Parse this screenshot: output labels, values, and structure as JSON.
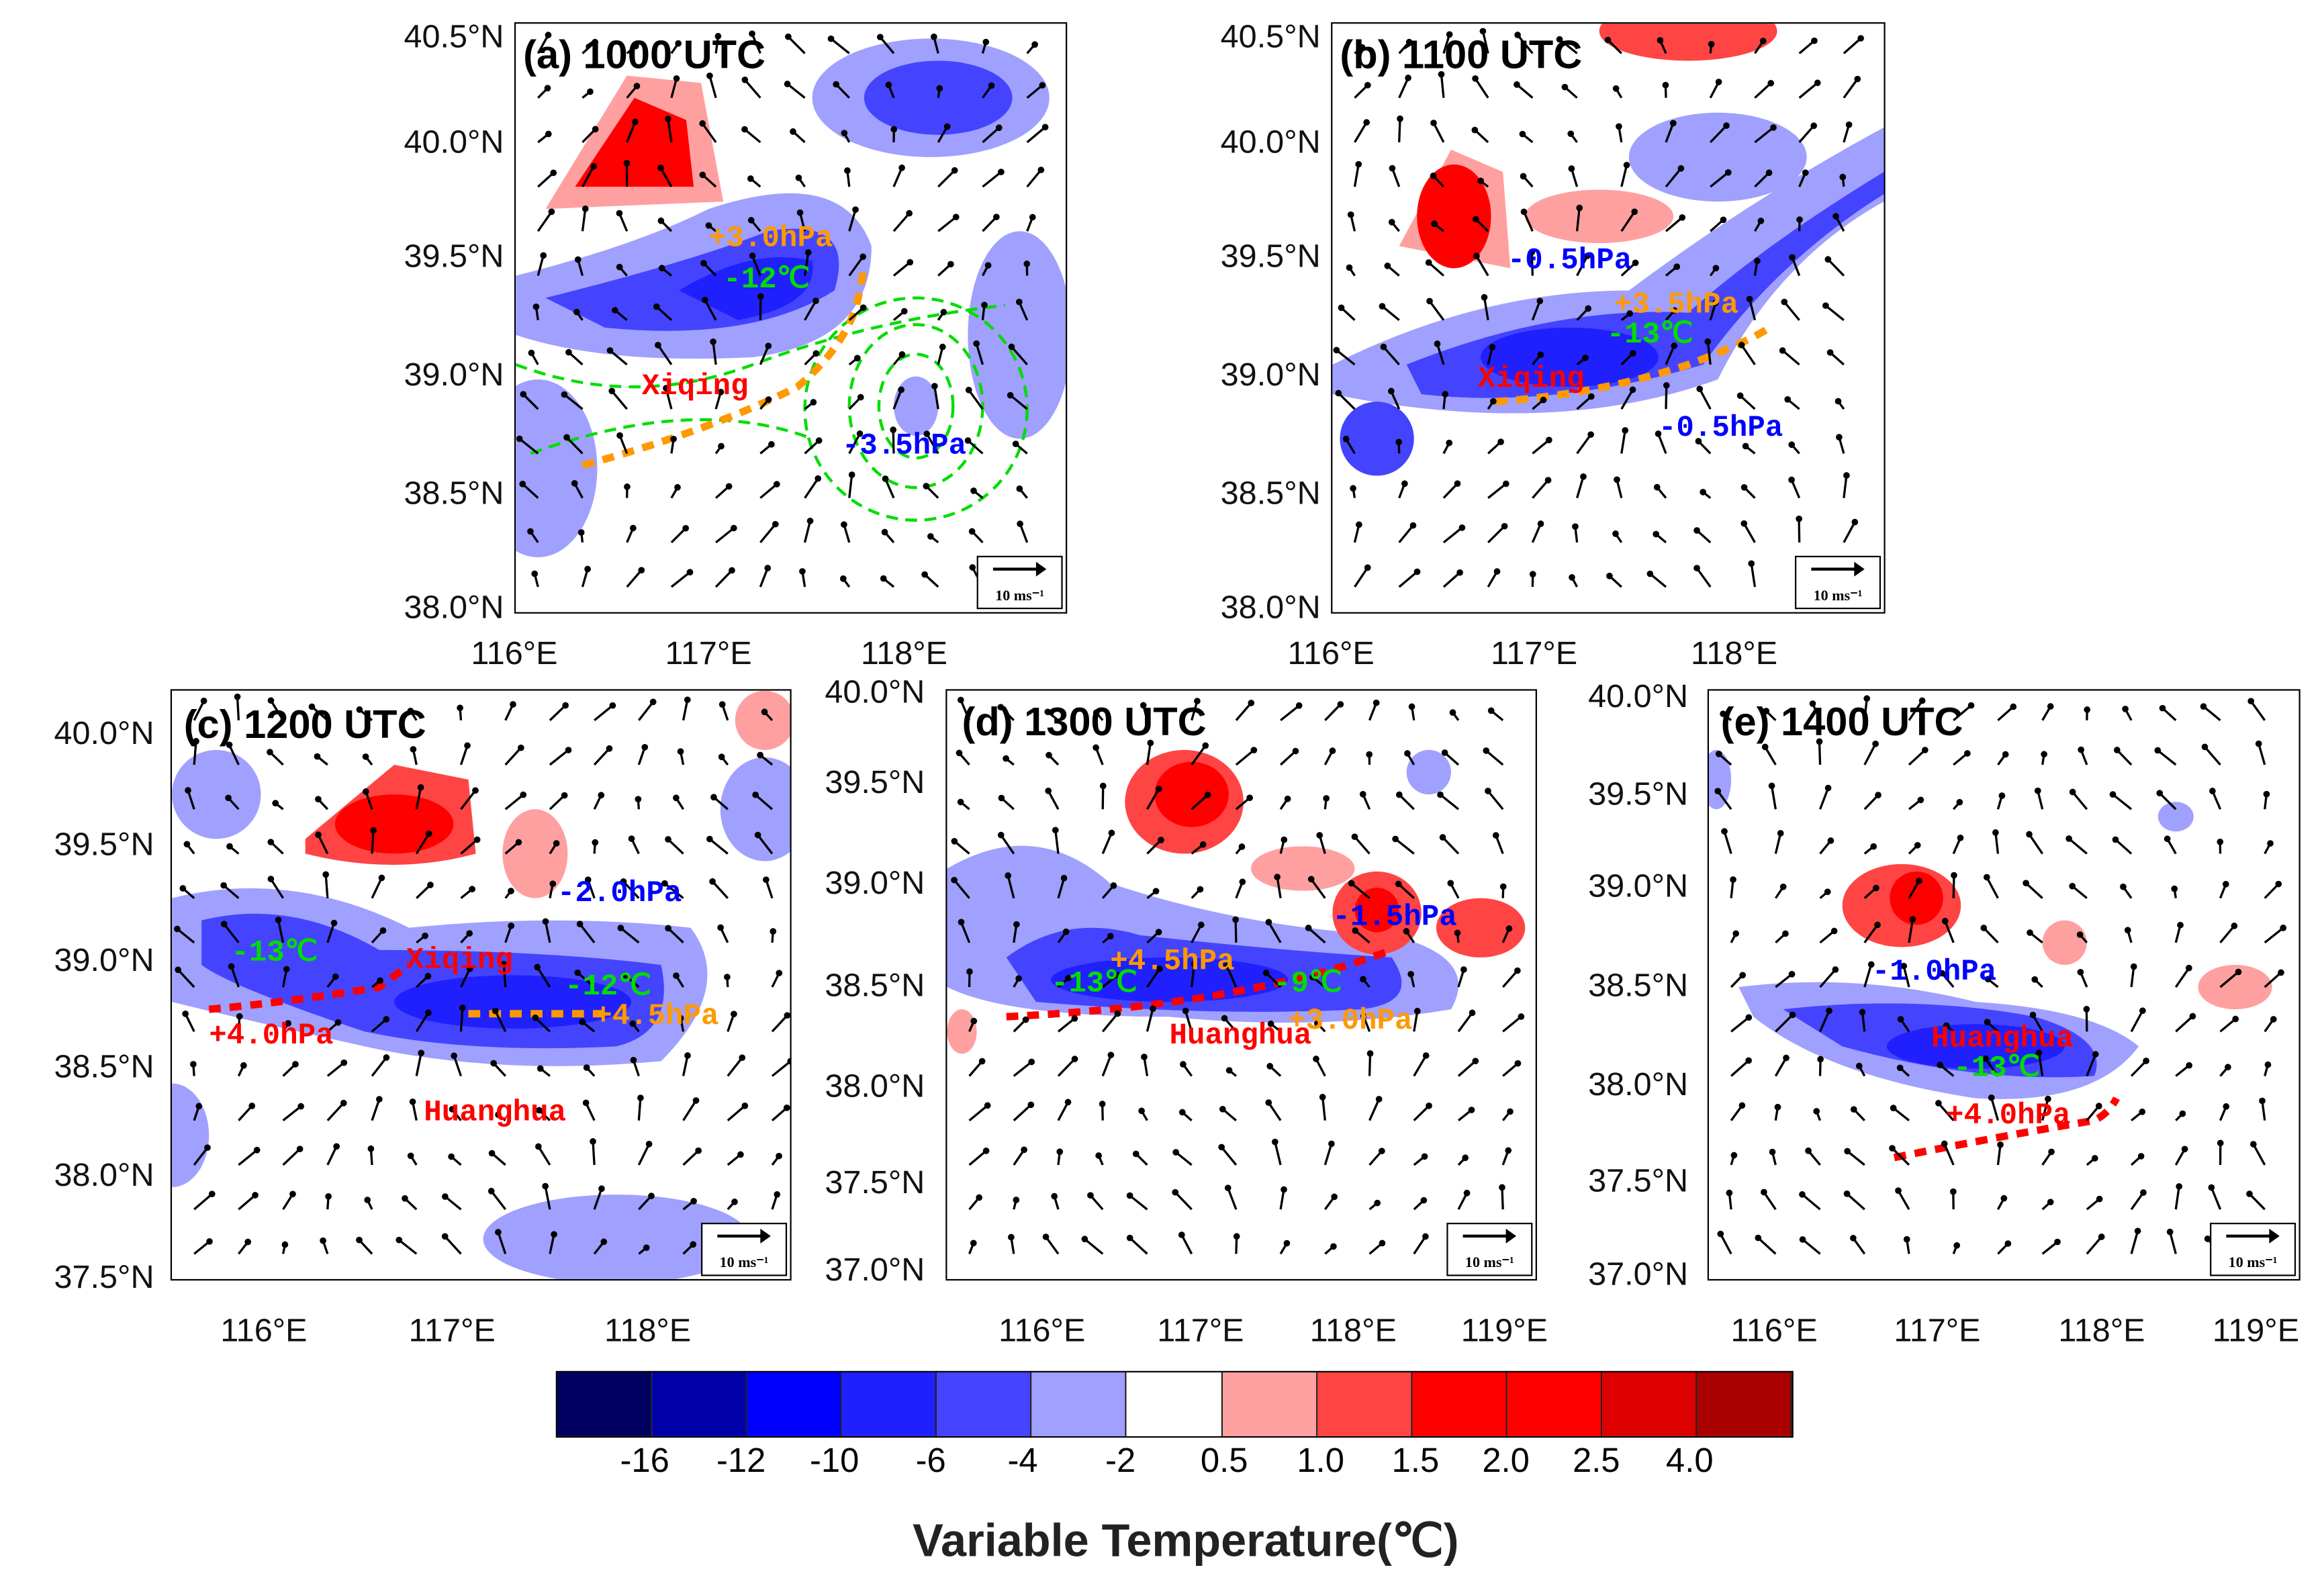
{
  "colorbar": {
    "title": "Variable Temperature(℃)",
    "tick_labels": [
      "-16",
      "-12",
      "-10",
      "-6",
      "-4",
      "-2",
      "0.5",
      "1.0",
      "1.5",
      "2.0",
      "2.5",
      "4.0"
    ],
    "colors": [
      "#000060",
      "#0000a8",
      "#0000ff",
      "#2020ff",
      "#4444ff",
      "#a0a0ff",
      "#ffffff",
      "#ffa0a0",
      "#ff4444",
      "#ff0000",
      "#ff0000",
      "#dd0000",
      "#aa0000"
    ]
  },
  "scale_label": "10 ms⁻¹",
  "panels": {
    "a": {
      "title": "(a)  1000 UTC",
      "lat": [
        "40.5°N",
        "40.0°N",
        "39.5°N",
        "39.0°N",
        "38.5°N",
        "38.0°N"
      ],
      "lon": [
        "116°E",
        "117°E",
        "118°E"
      ],
      "ann": [
        "+3.0hPa",
        "-12℃",
        "Xiqing",
        "-3.5hPa"
      ]
    },
    "b": {
      "title": "(b)  1100 UTC",
      "lat": [
        "40.5°N",
        "40.0°N",
        "39.5°N",
        "39.0°N",
        "38.5°N",
        "38.0°N"
      ],
      "lon": [
        "116°E",
        "117°E",
        "118°E"
      ],
      "ann": [
        "-0.5hPa",
        "+3.5hPa",
        "-13℃",
        "Xiqing",
        "-0.5hPa"
      ]
    },
    "c": {
      "title": "(c)  1200 UTC",
      "lat": [
        "40.0°N",
        "39.5°N",
        "39.0°N",
        "38.5°N",
        "38.0°N",
        "37.5°N"
      ],
      "lon": [
        "116°E",
        "117°E",
        "118°E"
      ],
      "ann": [
        "-2.0hPa",
        "-13℃",
        "Xiqing",
        "-12℃",
        "+4.5hPa",
        "+4.0hPa",
        "Huanghua"
      ]
    },
    "d": {
      "title": "(d)  1300 UTC",
      "lat": [
        "40.0°N",
        "39.5°N",
        "39.0°N",
        "38.5°N",
        "38.0°N",
        "37.5°N",
        "37.0°N"
      ],
      "lon": [
        "116°E",
        "117°E",
        "118°E",
        "119°E"
      ],
      "ann": [
        "-1.5hPa",
        "+4.5hPa",
        "-13℃",
        "-9℃",
        "+3.0hPa",
        "Huanghua"
      ]
    },
    "e": {
      "title": "(e)  1400 UTC",
      "lat": [
        "40.0°N",
        "39.5°N",
        "39.0°N",
        "38.5°N",
        "38.0°N",
        "37.5°N",
        "37.0°N"
      ],
      "lon": [
        "116°E",
        "117°E",
        "118°E",
        "119°E"
      ],
      "ann": [
        "-1.0hPa",
        "Huanghua",
        "-13℃",
        "+4.0hPa"
      ]
    }
  }
}
